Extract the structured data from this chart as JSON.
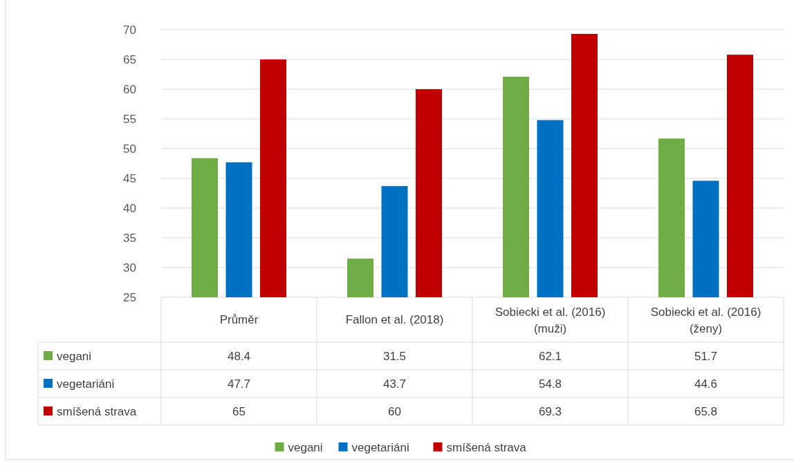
{
  "chart_data": {
    "type": "bar",
    "categories": [
      "Průměr",
      "Fallon et al. (2018)",
      "Sobiecki et al. (2016) (muži)",
      "Sobiecki et al. (2016) (ženy)"
    ],
    "series": [
      {
        "name": "vegani",
        "color": "#70ad47",
        "values": [
          48.4,
          31.5,
          62.1,
          51.7
        ]
      },
      {
        "name": "vegetariáni",
        "color": "#0070c0",
        "values": [
          47.7,
          43.7,
          54.8,
          44.6
        ]
      },
      {
        "name": "smíšená strava",
        "color": "#c00000",
        "values": [
          65,
          60,
          69.3,
          65.8
        ]
      }
    ],
    "ylim": [
      25,
      70
    ],
    "yticks": [
      25,
      30,
      35,
      40,
      45,
      50,
      55,
      60,
      65,
      70
    ],
    "grid": "y",
    "data_labels": true,
    "legend": "bottom"
  }
}
